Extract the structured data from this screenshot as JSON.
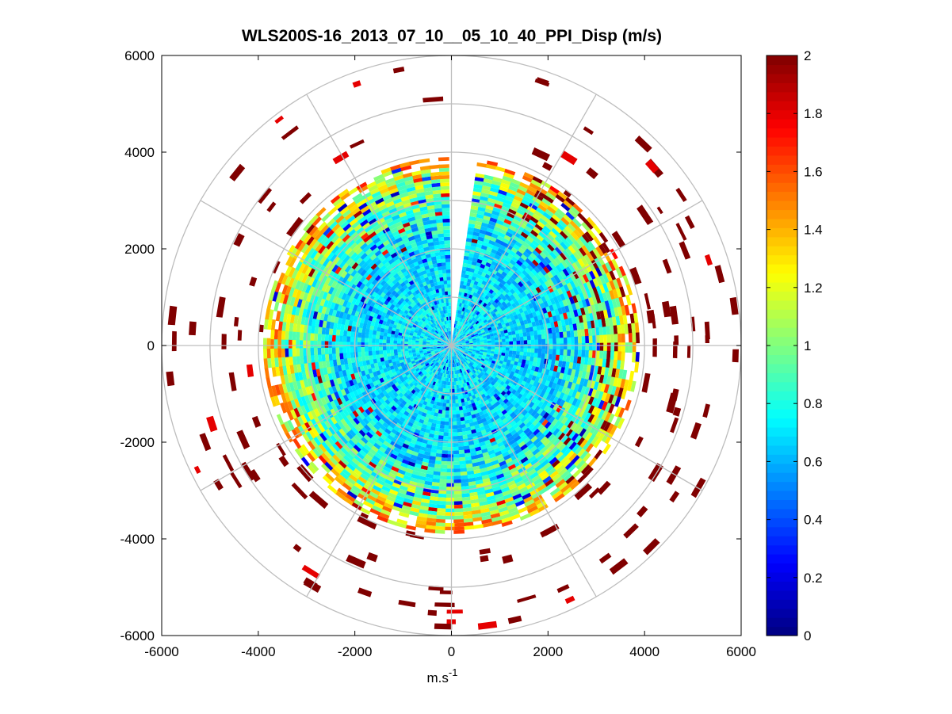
{
  "chart_data": {
    "type": "heatmap",
    "subtype": "polar-ppi",
    "title": "WLS200S-16_2013_07_10__05_10_40_PPI_Disp (m/s)",
    "xlabel": "m.s",
    "xlabel_superscript": "-1",
    "ylabel": "",
    "xlim": [
      -6000,
      6000
    ],
    "ylim": [
      -6000,
      6000
    ],
    "xticks": [
      -6000,
      -4000,
      -2000,
      0,
      2000,
      4000,
      6000
    ],
    "yticks": [
      -6000,
      -4000,
      -2000,
      0,
      2000,
      4000,
      6000
    ],
    "xtick_labels": [
      "-6000",
      "-4000",
      "-2000",
      "0",
      "2000",
      "4000",
      "6000"
    ],
    "ytick_labels": [
      "-6000",
      "-4000",
      "-2000",
      "0",
      "2000",
      "4000",
      "6000"
    ],
    "polar_grid": {
      "ring_radii_m": [
        1000,
        2000,
        3000,
        4000,
        5000,
        6000
      ],
      "spoke_angles_deg": [
        0,
        30,
        60,
        90,
        120,
        150,
        180,
        210,
        240,
        270,
        300,
        330
      ]
    },
    "dense_region": {
      "max_range_m": 3900,
      "gap_azimuth_from_north_deg": [
        -2,
        8
      ],
      "inner_value_m_s": 0.7,
      "outer_band_value_m_s": 1.0,
      "edge_value_m_s": 1.4
    },
    "scattered_outliers": {
      "range_m": [
        3900,
        6000
      ],
      "value_m_s": 2.0
    },
    "colorbar": {
      "colormap": "jet",
      "min": 0,
      "max": 2,
      "ticks": [
        0,
        0.2,
        0.4,
        0.6,
        0.8,
        1,
        1.2,
        1.4,
        1.6,
        1.8,
        2
      ],
      "tick_labels": [
        "0",
        "0.2",
        "0.4",
        "0.6",
        "0.8",
        "1",
        "1.2",
        "1.4",
        "1.6",
        "1.8",
        "2"
      ]
    }
  }
}
